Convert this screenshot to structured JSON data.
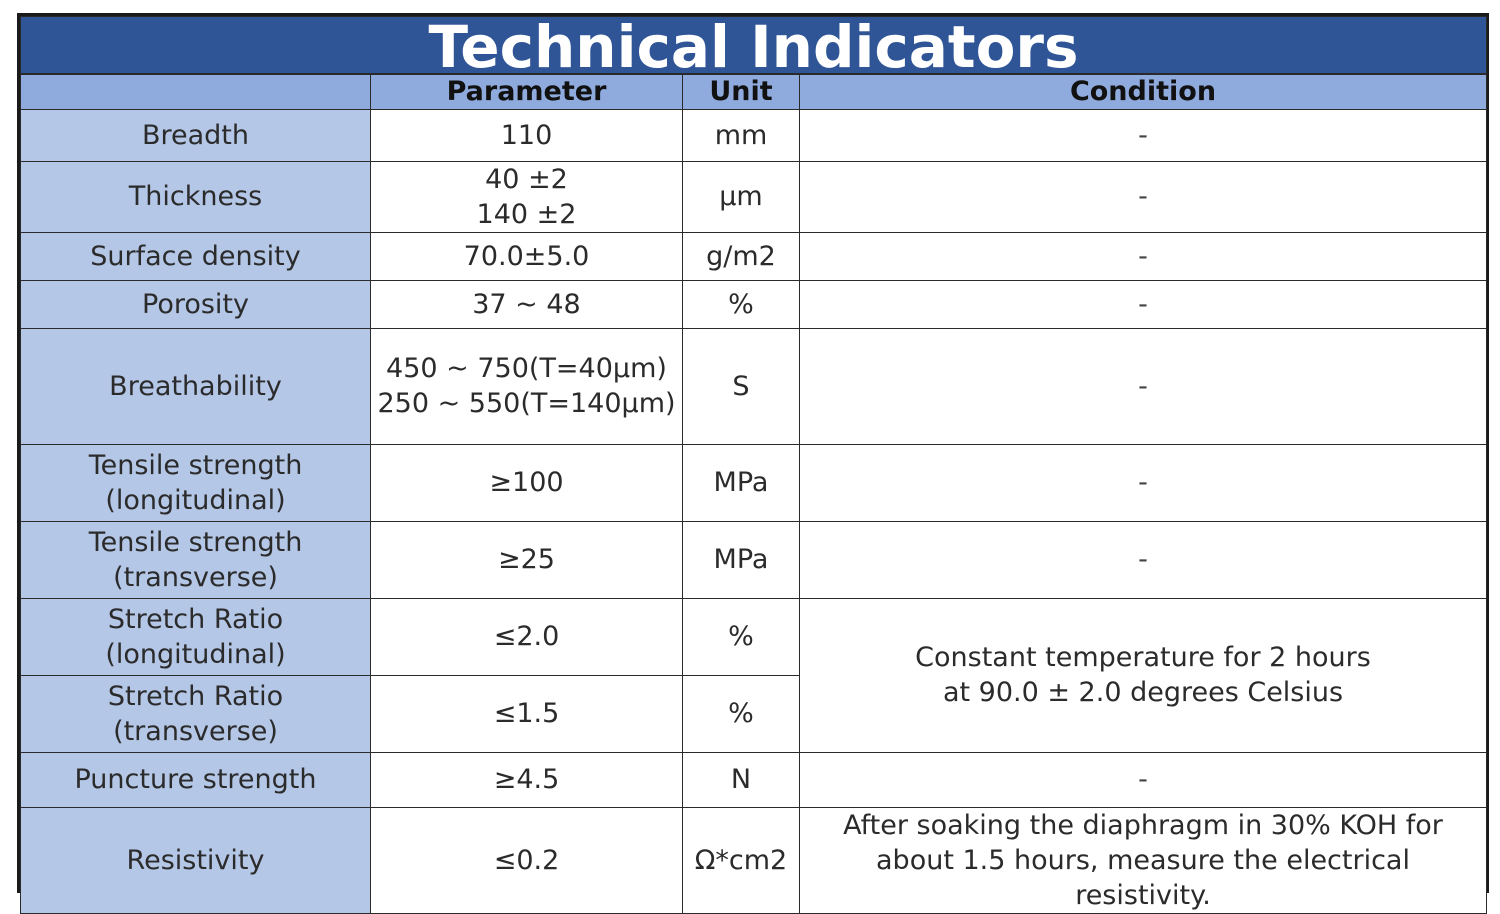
{
  "title": "Technical Indicators",
  "columns": {
    "blank": "",
    "parameter": "Parameter",
    "unit": "Unit",
    "condition": "Condition"
  },
  "rows": [
    {
      "name": [
        "Breadth"
      ],
      "value": [
        "110"
      ],
      "unit": "mm",
      "condition": [
        "-"
      ]
    },
    {
      "name": [
        "Thickness"
      ],
      "value": [
        "40 ±2",
        "140 ±2"
      ],
      "unit": "μm",
      "condition": [
        "-"
      ]
    },
    {
      "name": [
        "Surface density"
      ],
      "value": [
        "70.0±5.0"
      ],
      "unit": "g/m2",
      "condition": [
        "-"
      ]
    },
    {
      "name": [
        "Porosity"
      ],
      "value": [
        "37 ~ 48"
      ],
      "unit": "%",
      "condition": [
        "-"
      ]
    },
    {
      "name": [
        "Breathability"
      ],
      "value": [
        "450 ~ 750(T=40μm)",
        "250 ~ 550(T=140μm)"
      ],
      "unit": "S",
      "condition": [
        "-"
      ]
    },
    {
      "name": [
        "Tensile strength",
        "(longitudinal)"
      ],
      "value": [
        "≥100"
      ],
      "unit": "MPa",
      "condition": [
        "-"
      ]
    },
    {
      "name": [
        "Tensile strength",
        "(transverse)"
      ],
      "value": [
        "≥25"
      ],
      "unit": "MPa",
      "condition": [
        "-"
      ]
    },
    {
      "name": [
        "Stretch Ratio",
        "(longitudinal)"
      ],
      "value": [
        "≤2.0"
      ],
      "unit": "%",
      "condition": [
        "Constant temperature for 2 hours",
        "at 90.0 ± 2.0 degrees Celsius"
      ]
    },
    {
      "name": [
        "Stretch Ratio",
        "(transverse)"
      ],
      "value": [
        "≤1.5"
      ],
      "unit": "%"
    },
    {
      "name": [
        "Puncture strength"
      ],
      "value": [
        "≥4.5"
      ],
      "unit": "N",
      "condition": [
        "-"
      ]
    },
    {
      "name": [
        "Resistivity"
      ],
      "value": [
        "≤0.2"
      ],
      "unit": "Ω*cm2",
      "condition": [
        "After soaking the diaphragm in 30% KOH for",
        "about 1.5 hours, measure the electrical resistivity."
      ]
    }
  ],
  "colors": {
    "title_bg": "#2f5597",
    "header_bg": "#8faadc",
    "name_bg": "#b4c7e7",
    "border": "#2a2a2a"
  }
}
